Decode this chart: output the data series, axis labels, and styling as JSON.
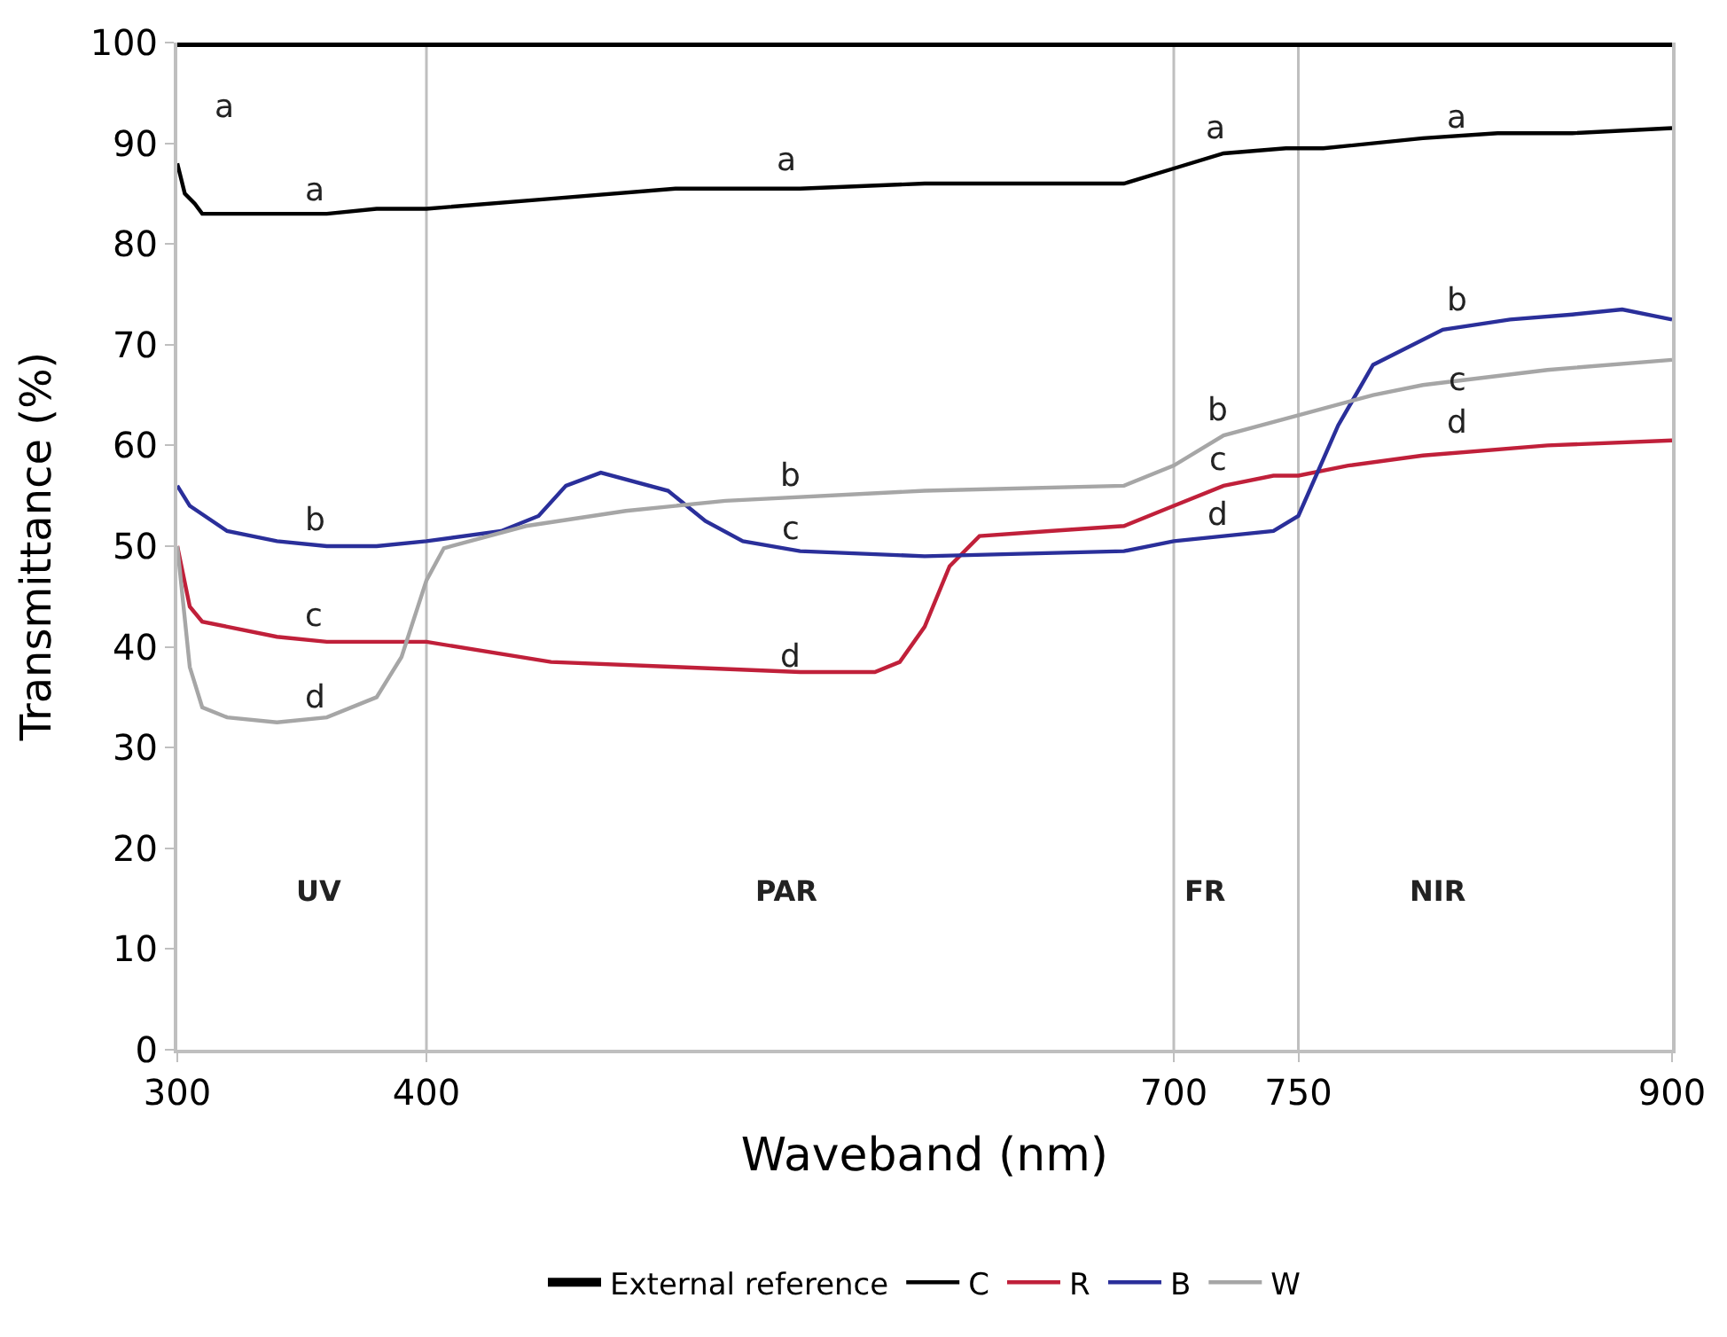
{
  "chart_data": {
    "type": "line",
    "xlabel": "Waveband (nm)",
    "ylabel": "Transmittance (%)",
    "xlim": [
      300,
      900
    ],
    "xticks": [
      300,
      400,
      700,
      750,
      900
    ],
    "ylim": [
      0,
      100
    ],
    "yticks": [
      0,
      10,
      20,
      30,
      40,
      50,
      60,
      70,
      80,
      90,
      100
    ],
    "grid": false,
    "legend": "bottom",
    "marker": "none",
    "line_style": "solid",
    "series": [
      {
        "name": "External reference",
        "color": "#000000",
        "x": [
          300,
          900
        ],
        "values": [
          100,
          100
        ]
      },
      {
        "name": "C",
        "color": "#000000",
        "x": [
          300,
          303,
          307,
          310,
          320,
          340,
          360,
          380,
          400,
          450,
          500,
          550,
          600,
          650,
          680,
          700,
          720,
          745,
          750,
          760,
          800,
          830,
          860,
          900
        ],
        "values": [
          88,
          85,
          84,
          83,
          83,
          83,
          83,
          83.5,
          83.5,
          84.5,
          85.5,
          85.5,
          86,
          86,
          86,
          87.5,
          89,
          89.5,
          89.5,
          89.5,
          90.5,
          91,
          91,
          91.5
        ]
      },
      {
        "name": "R",
        "color": "#c0203a",
        "x": [
          300,
          305,
          310,
          320,
          340,
          360,
          380,
          400,
          450,
          500,
          550,
          580,
          590,
          600,
          610,
          622,
          650,
          680,
          700,
          720,
          740,
          750,
          770,
          800,
          850,
          900
        ],
        "values": [
          50,
          44,
          42.5,
          42,
          41,
          40.5,
          40.5,
          40.5,
          38.5,
          38,
          37.5,
          37.5,
          38.5,
          42,
          48,
          51,
          51.5,
          52,
          54,
          56,
          57,
          57,
          58,
          59,
          60,
          60.5
        ]
      },
      {
        "name": "B",
        "color": "#2a2f9a",
        "x": [
          300,
          305,
          320,
          340,
          360,
          380,
          400,
          430,
          445,
          456,
          470,
          497,
          512,
          527,
          550,
          600,
          680,
          700,
          720,
          740,
          750,
          766,
          780,
          808,
          835,
          860,
          880,
          900
        ],
        "values": [
          56,
          54,
          51.5,
          50.5,
          50,
          50,
          50.5,
          51.5,
          53,
          56,
          57.3,
          55.5,
          52.5,
          50.5,
          49.5,
          49,
          49.5,
          50.5,
          51,
          51.5,
          53,
          62,
          68,
          71.5,
          72.5,
          73,
          73.5,
          72.5
        ]
      },
      {
        "name": "W",
        "color": "#a6a6a6",
        "x": [
          300,
          305,
          310,
          320,
          340,
          360,
          380,
          390,
          400,
          407,
          440,
          480,
          520,
          600,
          680,
          700,
          720,
          750,
          780,
          800,
          850,
          900
        ],
        "values": [
          50,
          38,
          34,
          33,
          32.5,
          33,
          35,
          39,
          46.6,
          49.8,
          52,
          53.5,
          54.5,
          55.5,
          56,
          58,
          61,
          63,
          65,
          66,
          67.5,
          68.5
        ]
      }
    ],
    "ref_lines": [
      {
        "axis": "x",
        "value": 400,
        "color": "#bfbfbf"
      },
      {
        "axis": "x",
        "value": 700,
        "color": "#bfbfbf"
      },
      {
        "axis": "x",
        "value": 750,
        "color": "#bfbfbf"
      }
    ],
    "annotations": [
      "a",
      "a",
      "a",
      "a",
      "a",
      "b",
      "c",
      "d",
      "b",
      "c",
      "d",
      "b",
      "c",
      "d",
      "b",
      "c",
      "d",
      "UV",
      "PAR",
      "FR",
      "NIR"
    ]
  }
}
